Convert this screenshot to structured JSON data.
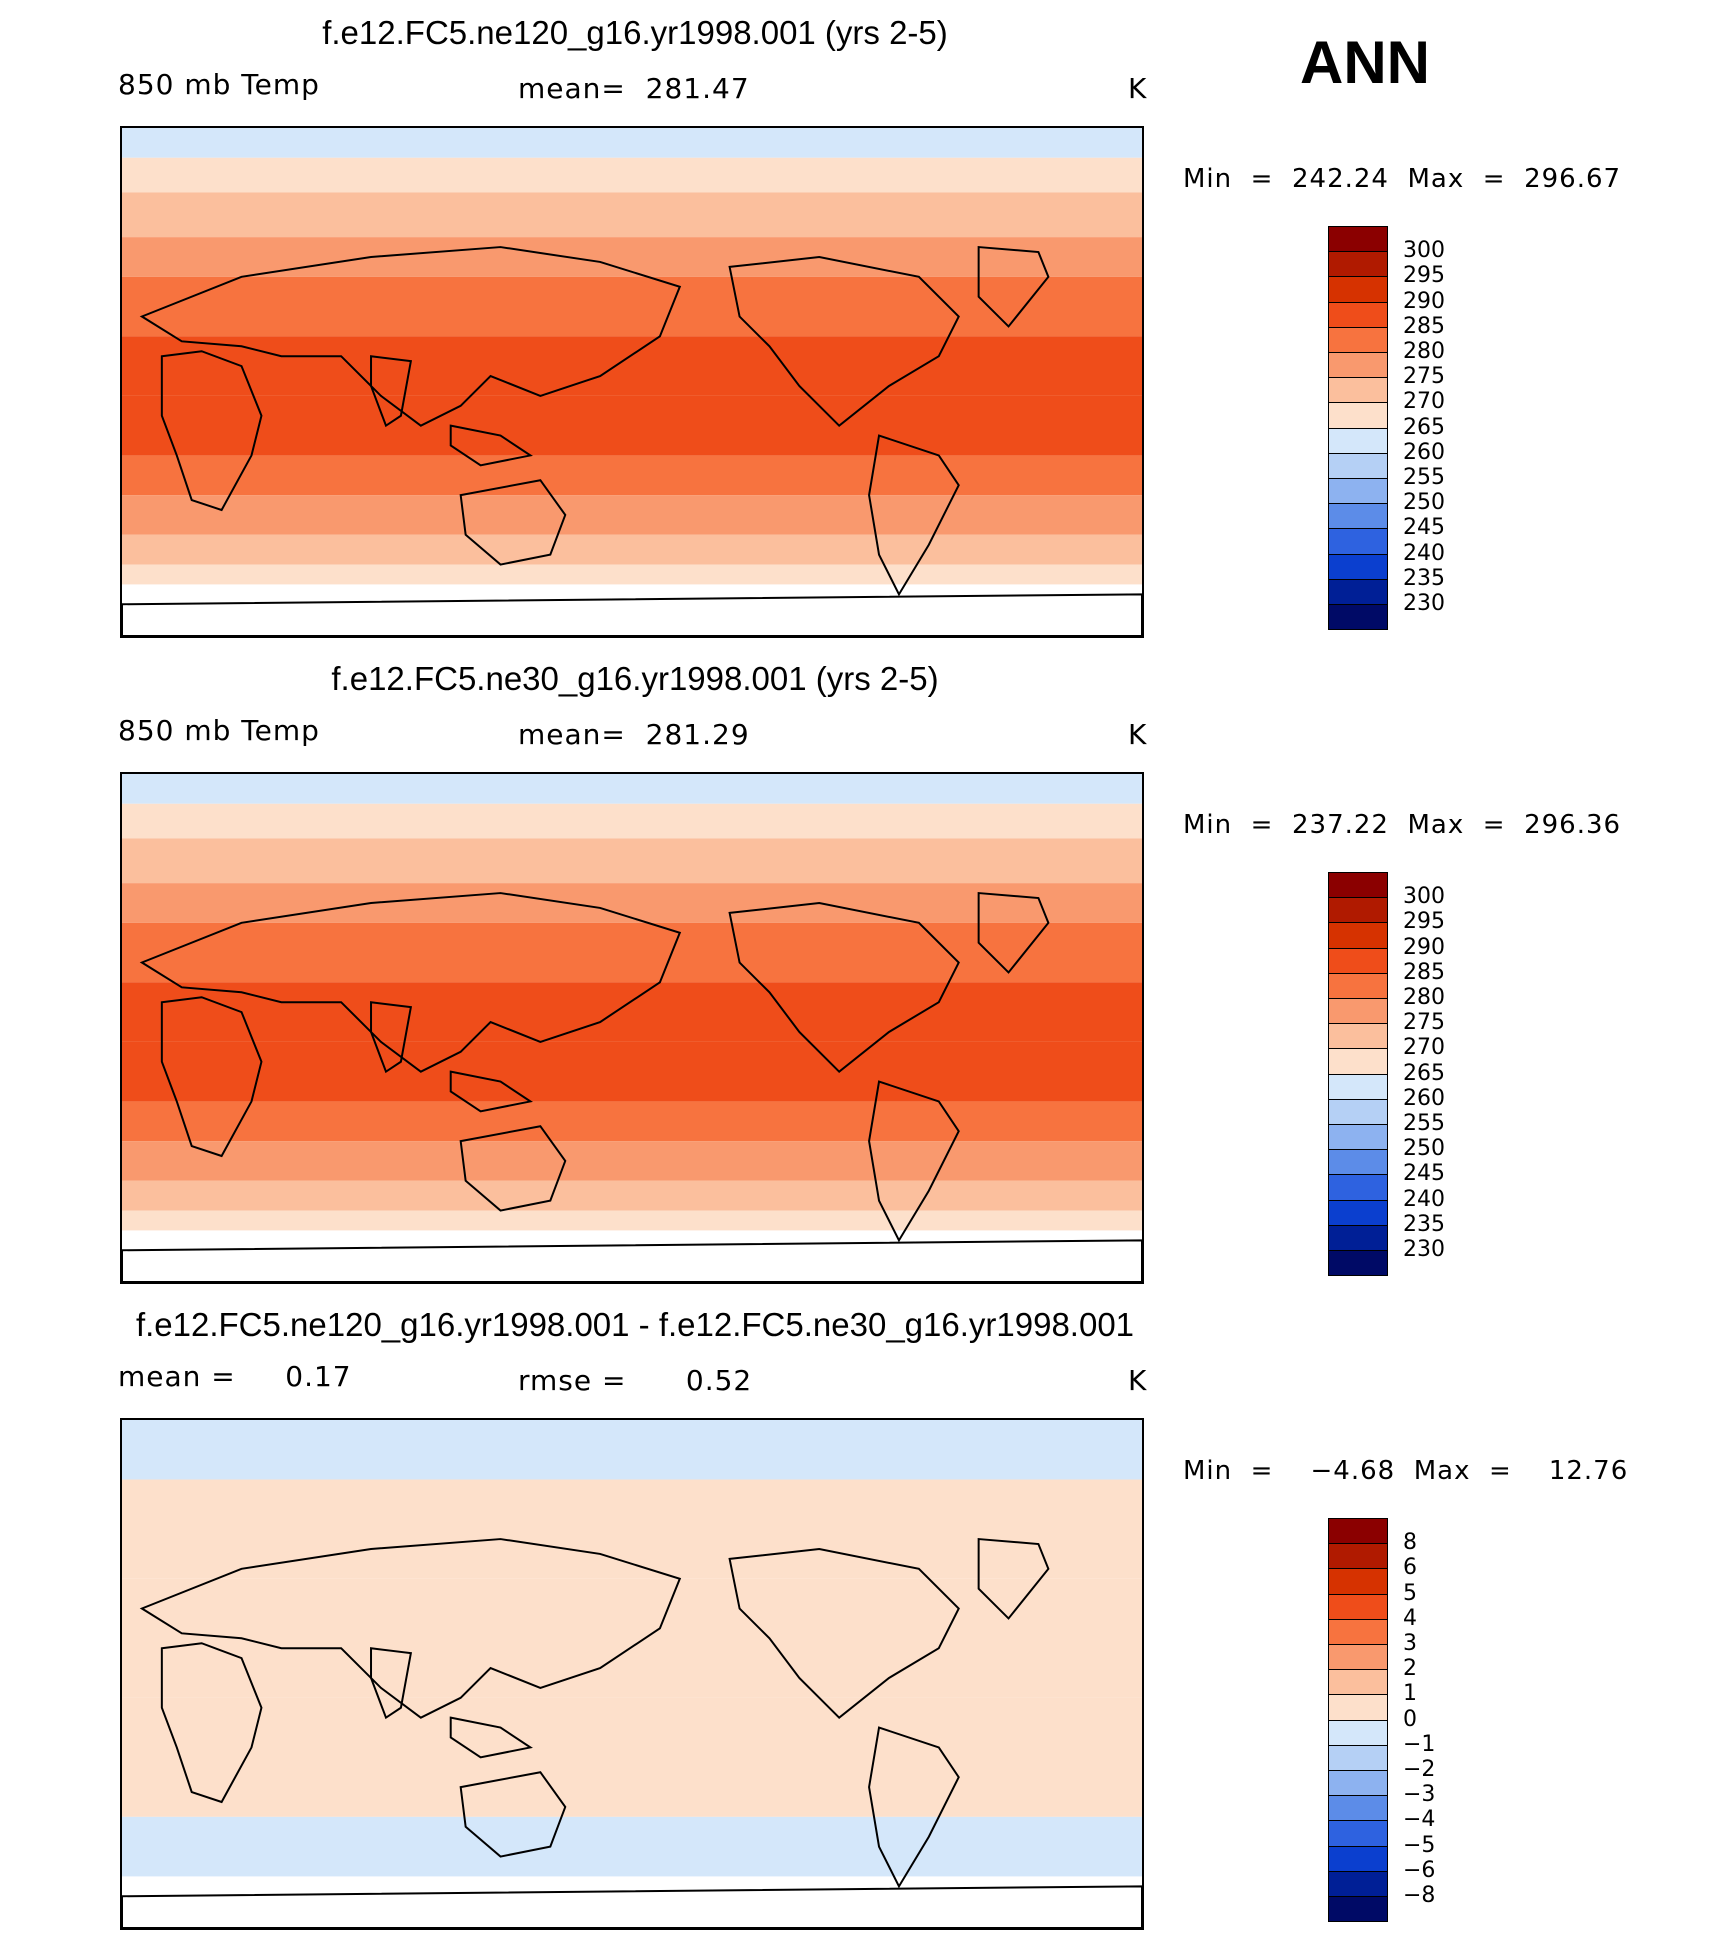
{
  "season": "ANN",
  "panels": [
    {
      "title": "f.e12.FC5.ne120_g16.yr1998.001 (yrs 2-5)",
      "left_label": "850 mb Temp",
      "center_label": "mean=  281.47",
      "units": "K",
      "minmax": "Min  =  242.24  Max  =  296.67",
      "levels": [
        "300",
        "295",
        "290",
        "285",
        "280",
        "275",
        "270",
        "265",
        "260",
        "255",
        "250",
        "245",
        "240",
        "235",
        "230"
      ],
      "colors": [
        "#8b0000",
        "#b01a00",
        "#d63200",
        "#ef4d1a",
        "#f7733f",
        "#f9996e",
        "#fbbf9d",
        "#fde0cb",
        "#d4e7fa",
        "#b5d0f5",
        "#8db2f0",
        "#5c8ce8",
        "#2e62e0",
        "#0b3fcf",
        "#001f96",
        "#000a66"
      ]
    },
    {
      "title": "f.e12.FC5.ne30_g16.yr1998.001 (yrs 2-5)",
      "left_label": "850 mb Temp",
      "center_label": "mean=  281.29",
      "units": "K",
      "minmax": "Min  =  237.22  Max  =  296.36",
      "levels": [
        "300",
        "295",
        "290",
        "285",
        "280",
        "275",
        "270",
        "265",
        "260",
        "255",
        "250",
        "245",
        "240",
        "235",
        "230"
      ],
      "colors": [
        "#8b0000",
        "#b01a00",
        "#d63200",
        "#ef4d1a",
        "#f7733f",
        "#f9996e",
        "#fbbf9d",
        "#fde0cb",
        "#d4e7fa",
        "#b5d0f5",
        "#8db2f0",
        "#5c8ce8",
        "#2e62e0",
        "#0b3fcf",
        "#001f96",
        "#000a66"
      ]
    },
    {
      "title": "f.e12.FC5.ne120_g16.yr1998.001 - f.e12.FC5.ne30_g16.yr1998.001",
      "left_label": "mean =     0.17",
      "center_label": "rmse =      0.52",
      "units": "K",
      "minmax": "Min  =    −4.68  Max  =    12.76",
      "levels": [
        "8",
        "6",
        "5",
        "4",
        "3",
        "2",
        "1",
        "0",
        "−1",
        "−2",
        "−3",
        "−4",
        "−5",
        "−6",
        "−8"
      ],
      "colors": [
        "#8b0000",
        "#b01a00",
        "#d63200",
        "#ef4d1a",
        "#f7733f",
        "#f9996e",
        "#fbbf9d",
        "#fde0cb",
        "#d4e7fa",
        "#b5d0f5",
        "#8db2f0",
        "#5c8ce8",
        "#2e62e0",
        "#0b3fcf",
        "#001f96",
        "#000a66"
      ]
    }
  ],
  "chart_data": [
    {
      "type": "heatmap",
      "variable": "850 mb Temp",
      "units": "K",
      "mean": 281.47,
      "min": 242.24,
      "max": 296.67,
      "contour_levels": [
        230,
        235,
        240,
        245,
        250,
        255,
        260,
        265,
        270,
        275,
        280,
        285,
        290,
        295,
        300
      ]
    },
    {
      "type": "heatmap",
      "variable": "850 mb Temp",
      "units": "K",
      "mean": 281.29,
      "min": 237.22,
      "max": 296.36,
      "contour_levels": [
        230,
        235,
        240,
        245,
        250,
        255,
        260,
        265,
        270,
        275,
        280,
        285,
        290,
        295,
        300
      ]
    },
    {
      "type": "heatmap",
      "units": "K",
      "mean": 0.17,
      "rmse": 0.52,
      "min": -4.68,
      "max": 12.76,
      "contour_levels": [
        -8,
        -6,
        -5,
        -4,
        -3,
        -2,
        -1,
        0,
        1,
        2,
        3,
        4,
        5,
        6,
        8
      ]
    }
  ]
}
